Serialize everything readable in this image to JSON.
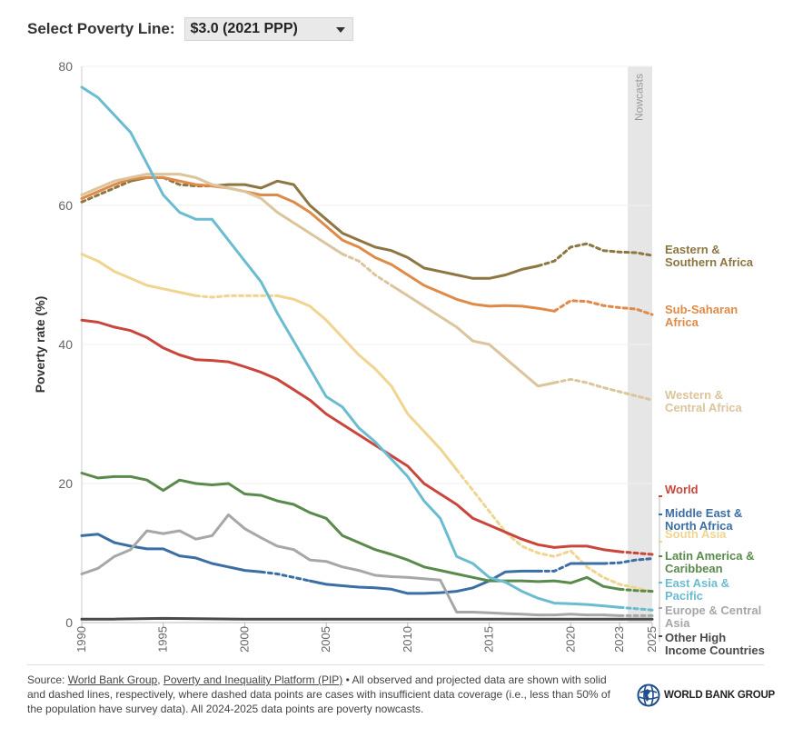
{
  "selector": {
    "label": "Select Poverty Line:",
    "value": "$3.0 (2021 PPP)"
  },
  "source": {
    "prefix": "Source: ",
    "link1": "World Bank Group",
    "sep": ", ",
    "link2": "Poverty and Inequality Platform (PIP)",
    "text": " • All observed and projected data are shown with solid and dashed lines, respectively, where dashed data points are cases with insufficient data coverage (i.e., less than 50% of the population have survey data). All 2024-2025 data points are poverty nowcasts."
  },
  "logo": {
    "text": "WORLD BANK GROUP"
  },
  "chart_data": {
    "type": "line",
    "ylabel": "Poverty rate (%)",
    "xlabel": "",
    "ylim": [
      0,
      80
    ],
    "xlim": [
      1990,
      2025
    ],
    "yticks": [
      0,
      20,
      40,
      60,
      80
    ],
    "xticks": [
      1990,
      1995,
      2000,
      2005,
      2010,
      2015,
      2020,
      2023,
      2025
    ],
    "nowcast_band": {
      "from": 2023.5,
      "to": 2025,
      "label": "Nowcasts"
    },
    "series": [
      {
        "name": "Eastern & Southern Africa",
        "label_lines": [
          "Eastern &",
          "Southern Africa"
        ],
        "color": "#8c7642",
        "x": [
          1990,
          1992,
          1993,
          1994,
          1995,
          1996,
          1997,
          1998,
          1999,
          2000,
          2001,
          2002,
          2003,
          2004,
          2005,
          2006,
          2007,
          2008,
          2009,
          2010,
          2011,
          2012,
          2013,
          2014,
          2015,
          2016,
          2017,
          2018,
          2019,
          2020,
          2021,
          2022,
          2023,
          2024,
          2025
        ],
        "y": [
          60.5,
          62.5,
          63.5,
          64,
          64,
          63,
          62.8,
          62.8,
          63,
          63,
          62.5,
          63.5,
          63,
          60,
          58,
          56,
          55,
          54,
          53.5,
          52.5,
          51,
          50.5,
          50,
          49.5,
          49.5,
          50,
          50.8,
          51.3,
          52,
          54,
          54.5,
          53.5,
          53.3,
          53.2,
          52.8
        ],
        "solid_until": 2018,
        "dashed_ranges": [
          [
            1990,
            1993
          ],
          [
            1995.5,
            1998
          ],
          [
            2018,
            2025
          ]
        ]
      },
      {
        "name": "Sub-Saharan Africa",
        "label_lines": [
          "Sub-Saharan",
          "Africa"
        ],
        "color": "#e08a48",
        "x": [
          1990,
          1992,
          1993,
          1994,
          1995,
          1996,
          1997,
          1998,
          1999,
          2000,
          2001,
          2002,
          2003,
          2004,
          2005,
          2006,
          2007,
          2008,
          2009,
          2010,
          2011,
          2012,
          2013,
          2014,
          2015,
          2016,
          2017,
          2018,
          2019,
          2020,
          2021,
          2022,
          2023,
          2024,
          2025
        ],
        "y": [
          61,
          63,
          63.8,
          64,
          64,
          63.5,
          63,
          62.8,
          62.5,
          62,
          61.5,
          61.5,
          60.5,
          59,
          57,
          55,
          54,
          52.5,
          51.5,
          50,
          48.5,
          47.5,
          46.5,
          45.8,
          45.5,
          45.6,
          45.5,
          45.2,
          44.8,
          46.3,
          46.2,
          45.6,
          45.3,
          45.1,
          44.3
        ],
        "dashed_ranges": [
          [
            2019.5,
            2025
          ]
        ]
      },
      {
        "name": "Western & Central Africa",
        "label_lines": [
          "Western &",
          "Central Africa"
        ],
        "color": "#dcc49c",
        "x": [
          1990,
          1992,
          1993,
          1994,
          1995,
          1996,
          1997,
          1998,
          1999,
          2000,
          2001,
          2002,
          2003,
          2004,
          2005,
          2006,
          2007,
          2008,
          2009,
          2010,
          2011,
          2012,
          2013,
          2014,
          2015,
          2016,
          2017,
          2018,
          2019,
          2020,
          2021,
          2022,
          2023,
          2024,
          2025
        ],
        "y": [
          61.5,
          63.5,
          64,
          64.5,
          64.5,
          64.5,
          64,
          63,
          62.5,
          62,
          61,
          59,
          57.5,
          56,
          54.5,
          53,
          52,
          50,
          48.5,
          47,
          45.5,
          44,
          42.5,
          40.5,
          40,
          38,
          36,
          34,
          34.5,
          35,
          34.5,
          33.8,
          33.2,
          32.6,
          32
        ],
        "dashed_ranges": [
          [
            2006,
            2009
          ],
          [
            2019,
            2025
          ]
        ]
      },
      {
        "name": "South Asia",
        "label_lines": [
          "South Asia"
        ],
        "color": "#f0d590",
        "x": [
          1990,
          1991,
          1992,
          1993,
          1994,
          1995,
          1996,
          1997,
          1998,
          1999,
          2000,
          2001,
          2002,
          2003,
          2004,
          2005,
          2006,
          2007,
          2008,
          2009,
          2010,
          2011,
          2012,
          2013,
          2014,
          2015,
          2016,
          2017,
          2018,
          2019,
          2020,
          2021,
          2022,
          2023,
          2024,
          2025
        ],
        "y": [
          53,
          52,
          50.5,
          49.5,
          48.5,
          48,
          47.5,
          47,
          46.8,
          47,
          47,
          47,
          47,
          46.5,
          45.5,
          43.5,
          41,
          38.5,
          36.5,
          34,
          30,
          27.5,
          25,
          22,
          19,
          16,
          13,
          11,
          10,
          9.5,
          10.3,
          8,
          6.5,
          5.5,
          5,
          4.5
        ],
        "dashed_ranges": [
          [
            1997,
            2002
          ],
          [
            2013,
            2025
          ]
        ]
      },
      {
        "name": "World",
        "label_lines": [
          "World"
        ],
        "color": "#c9463d",
        "x": [
          1990,
          1991,
          1992,
          1993,
          1994,
          1995,
          1996,
          1997,
          1998,
          1999,
          2000,
          2001,
          2002,
          2003,
          2004,
          2005,
          2006,
          2007,
          2008,
          2009,
          2010,
          2011,
          2012,
          2013,
          2014,
          2015,
          2016,
          2017,
          2018,
          2019,
          2020,
          2021,
          2022,
          2023,
          2024,
          2025
        ],
        "y": [
          43.5,
          43.2,
          42.5,
          42,
          41,
          39.5,
          38.5,
          37.8,
          37.7,
          37.5,
          36.8,
          36,
          35,
          33.5,
          32,
          30,
          28.5,
          27,
          25.5,
          24,
          22.5,
          20,
          18.5,
          17,
          15,
          14,
          13,
          12,
          11.2,
          10.8,
          11,
          11,
          10.5,
          10.2,
          10,
          9.8
        ],
        "dashed_ranges": [
          [
            2023,
            2025
          ]
        ]
      },
      {
        "name": "Middle East & North Africa",
        "label_lines": [
          "Middle East &",
          "North Africa"
        ],
        "color": "#3b6ea5",
        "x": [
          1990,
          1991,
          1992,
          1993,
          1994,
          1995,
          1996,
          1997,
          1998,
          1999,
          2000,
          2001,
          2002,
          2003,
          2004,
          2005,
          2006,
          2007,
          2008,
          2009,
          2010,
          2011,
          2012,
          2013,
          2014,
          2015,
          2016,
          2017,
          2018,
          2019,
          2020,
          2021,
          2022,
          2023,
          2024,
          2025
        ],
        "y": [
          12.5,
          12.7,
          11.5,
          11,
          10.6,
          10.6,
          9.6,
          9.3,
          8.5,
          8,
          7.5,
          7.3,
          7,
          6.5,
          6,
          5.5,
          5.3,
          5.1,
          5,
          4.8,
          4.2,
          4.2,
          4.3,
          4.5,
          5,
          6,
          7.3,
          7.4,
          7.4,
          7.4,
          8.5,
          8.5,
          8.5,
          8.6,
          9,
          9.2
        ],
        "dashed_ranges": [
          [
            2001.5,
            2004
          ],
          [
            2018.5,
            2020
          ],
          [
            2022,
            2025
          ]
        ]
      },
      {
        "name": "Latin America & Caribbean",
        "label_lines": [
          "Latin America &",
          "Caribbean"
        ],
        "color": "#5a8a4c",
        "x": [
          1990,
          1991,
          1992,
          1993,
          1994,
          1995,
          1996,
          1997,
          1998,
          1999,
          2000,
          2001,
          2002,
          2003,
          2004,
          2005,
          2006,
          2007,
          2008,
          2009,
          2010,
          2011,
          2012,
          2013,
          2014,
          2015,
          2016,
          2017,
          2018,
          2019,
          2020,
          2021,
          2022,
          2023,
          2024,
          2025
        ],
        "y": [
          21.5,
          20.8,
          21,
          21,
          20.5,
          19,
          20.5,
          20,
          19.8,
          20,
          18.5,
          18.3,
          17.5,
          17,
          15.8,
          15,
          12.5,
          11.5,
          10.5,
          9.8,
          9,
          8,
          7.5,
          7,
          6.5,
          6,
          6,
          6,
          5.9,
          6,
          5.7,
          6.5,
          5.2,
          4.8,
          4.6,
          4.5
        ],
        "dashed_ranges": [
          [
            2023,
            2025
          ]
        ]
      },
      {
        "name": "East Asia & Pacific",
        "label_lines": [
          "East Asia &",
          "Pacific"
        ],
        "color": "#6bbcd0",
        "x": [
          1990,
          1991,
          1992,
          1993,
          1994,
          1995,
          1996,
          1997,
          1998,
          1999,
          2000,
          2001,
          2002,
          2003,
          2004,
          2005,
          2006,
          2007,
          2008,
          2009,
          2010,
          2011,
          2012,
          2013,
          2014,
          2015,
          2016,
          2017,
          2018,
          2019,
          2020,
          2021,
          2022,
          2023,
          2024,
          2025
        ],
        "y": [
          77,
          75.5,
          73,
          70.5,
          66,
          61.5,
          59,
          58,
          58,
          55,
          52,
          49,
          44.5,
          40.5,
          36.5,
          32.5,
          31,
          28,
          26,
          23.5,
          21,
          17.5,
          15,
          9.5,
          8.5,
          6.5,
          5.8,
          4.5,
          3.5,
          2.8,
          2.7,
          2.6,
          2.4,
          2.2,
          2,
          1.8
        ],
        "dashed_ranges": [
          [
            2023,
            2025
          ]
        ]
      },
      {
        "name": "Europe & Central Asia",
        "label_lines": [
          "Europe & Central",
          "Asia"
        ],
        "color": "#a7a7a7",
        "x": [
          1990,
          1991,
          1992,
          1993,
          1994,
          1995,
          1996,
          1997,
          1998,
          1999,
          2000,
          2001,
          2002,
          2003,
          2004,
          2005,
          2006,
          2007,
          2008,
          2009,
          2010,
          2011,
          2012,
          2013,
          2014,
          2015,
          2016,
          2017,
          2018,
          2019,
          2020,
          2021,
          2022,
          2023,
          2024,
          2025
        ],
        "y": [
          7,
          7.8,
          9.5,
          10.5,
          13.2,
          12.8,
          13.2,
          12,
          12.5,
          15.5,
          13.5,
          12.2,
          11,
          10.5,
          9,
          8.8,
          8,
          7.5,
          6.8,
          6.6,
          6.5,
          6.3,
          6.1,
          1.5,
          1.5,
          1.4,
          1.3,
          1.2,
          1.1,
          1.1,
          1.2,
          1.1,
          1.1,
          1,
          1,
          1
        ],
        "dashed_ranges": [
          [
            2023,
            2025
          ]
        ]
      },
      {
        "name": "Other High Income Countries",
        "label_lines": [
          "Other High",
          "Income Countries"
        ],
        "color": "#4a4a4a",
        "x": [
          1990,
          1992,
          1995,
          2000,
          2005,
          2010,
          2015,
          2020,
          2025
        ],
        "y": [
          0.5,
          0.5,
          0.6,
          0.5,
          0.5,
          0.5,
          0.5,
          0.5,
          0.5
        ],
        "dashed_ranges": [
          [
            2023,
            2025
          ]
        ]
      }
    ]
  }
}
